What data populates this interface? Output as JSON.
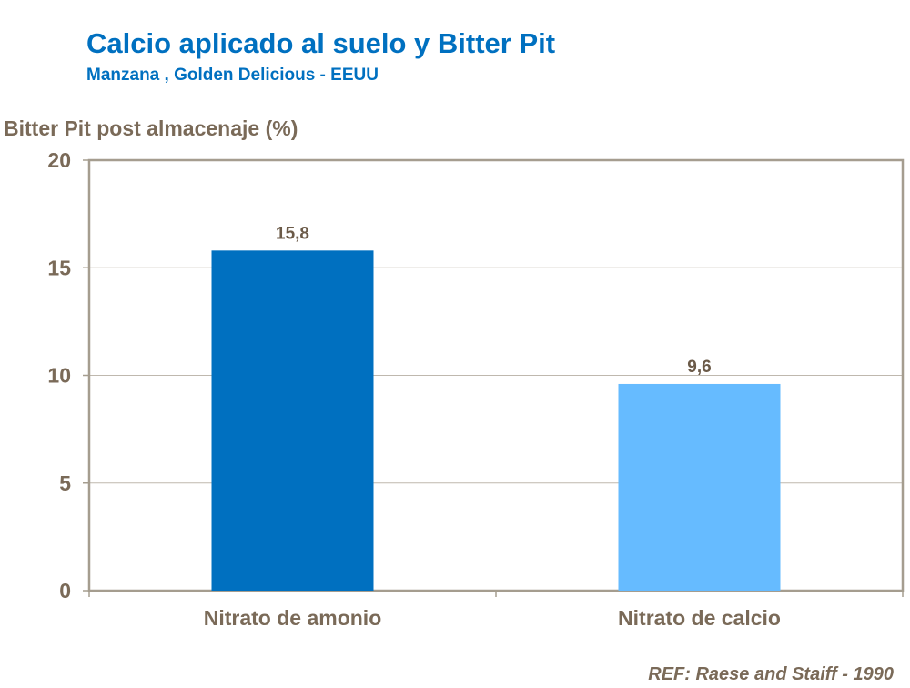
{
  "chart_data": {
    "type": "bar",
    "title": "Calcio aplicado al suelo y Bitter Pit",
    "subtitle": "Manzana , Golden Delicious - EEUU",
    "xlabel": "",
    "ylabel": "Bitter Pit post almacenaje (%)",
    "categories": [
      "Nitrato de amonio",
      "Nitrato de calcio"
    ],
    "values": [
      15.8,
      9.6
    ],
    "data_labels": [
      "15,8",
      "9,6"
    ],
    "colors": [
      "#0070C0",
      "#66BBFF"
    ],
    "ylim": [
      0,
      20
    ],
    "yticks": [
      0,
      5,
      10,
      15,
      20
    ],
    "grid": true,
    "legend": "none",
    "note": "REF: Raese and Staiff - 1990"
  }
}
